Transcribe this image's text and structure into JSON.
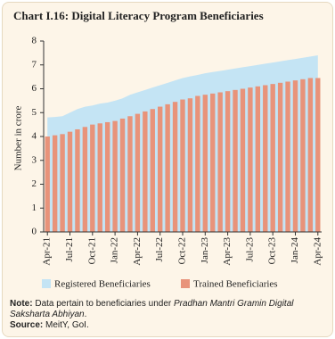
{
  "chart_data": {
    "type": "combo",
    "title": "Chart I.16: Digital Literacy Program Beneficiaries",
    "y_label": "Number in crore",
    "categories": [
      "Apr-21",
      null,
      null,
      "Jul-21",
      null,
      null,
      "Oct-21",
      null,
      null,
      "Jan-22",
      null,
      null,
      "Apr-22",
      null,
      null,
      "Jul-22",
      null,
      null,
      "Oct-22",
      null,
      null,
      "Jan-23",
      null,
      null,
      "Apr-23",
      null,
      null,
      "Jul-23",
      null,
      null,
      "Oct-23",
      null,
      null,
      "Jan-24",
      null,
      null,
      "Apr-24"
    ],
    "series": [
      {
        "name": "Registered Beneficiaries",
        "type": "area",
        "color": "#c4e4f4",
        "values": [
          4.8,
          4.82,
          4.85,
          5.0,
          5.15,
          5.25,
          5.3,
          5.38,
          5.42,
          5.5,
          5.6,
          5.75,
          5.85,
          5.95,
          6.05,
          6.15,
          6.25,
          6.35,
          6.45,
          6.52,
          6.58,
          6.65,
          6.7,
          6.75,
          6.8,
          6.85,
          6.9,
          6.95,
          7.0,
          7.05,
          7.1,
          7.15,
          7.2,
          7.25,
          7.3,
          7.35,
          7.4
        ]
      },
      {
        "name": "Trained Beneficiaries",
        "type": "bar",
        "color": "#e8937a",
        "values": [
          4.0,
          4.05,
          4.1,
          4.2,
          4.3,
          4.4,
          4.5,
          4.55,
          4.6,
          4.65,
          4.75,
          4.85,
          4.95,
          5.05,
          5.15,
          5.25,
          5.35,
          5.45,
          5.55,
          5.6,
          5.7,
          5.75,
          5.8,
          5.85,
          5.9,
          5.95,
          6.0,
          6.05,
          6.1,
          6.15,
          6.2,
          6.25,
          6.3,
          6.35,
          6.4,
          6.45,
          6.45
        ]
      }
    ],
    "ylim": [
      0,
      8
    ],
    "yticks": [
      0,
      1,
      2,
      3,
      4,
      5,
      6,
      7,
      8
    ],
    "notes": {
      "note_label": "Note:",
      "note_text": "Data pertain to beneficiaries under",
      "note_italic": "Pradhan Mantri Gramin Digital Saksharta Abhiyan",
      "note_end": ".",
      "source_label": "Source:",
      "source_text": "MeitY, GoI."
    }
  }
}
